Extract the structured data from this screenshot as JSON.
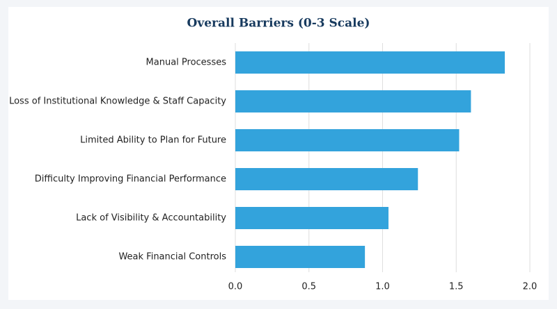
{
  "chart_data": {
    "type": "bar",
    "orientation": "horizontal",
    "title": "Overall Barriers (0-3 Scale)",
    "categories": [
      "Manual Processes",
      "Loss of Institutional Knowledge & Staff Capacity",
      "Limited Ability to Plan for Future",
      "Difficulty Improving Financial Performance",
      "Lack of Visibility & Accountability",
      "Weak Financial Controls"
    ],
    "values": [
      1.83,
      1.6,
      1.52,
      1.24,
      1.04,
      0.88
    ],
    "color": "#33a3dc",
    "xlim": [
      0,
      2
    ],
    "xticks": [
      {
        "value": 0,
        "label": "0.0"
      },
      0.5,
      {
        "value": 1,
        "label": "1.0"
      },
      1.5,
      {
        "value": 2,
        "label": "2.0"
      }
    ],
    "grid": true
  }
}
